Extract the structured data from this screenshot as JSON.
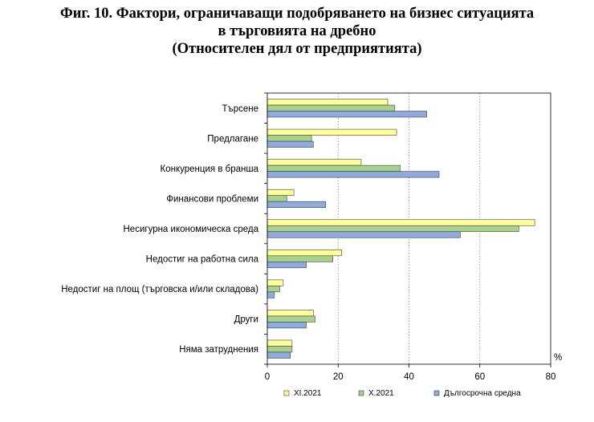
{
  "title": {
    "line1": "Фиг. 10. Фактори, ограничаващи подобряването на бизнес ситуацията",
    "line2": "в търговията на дребно",
    "line3": "(Относителен дял от предприятията)"
  },
  "chart_data": {
    "type": "bar",
    "orientation": "horizontal",
    "categories": [
      "Търсене",
      "Предлагане",
      "Конкуренция в бранша",
      "Финансови проблеми",
      "Несигурна икономическа среда",
      "Недостиг на работна сила",
      "Недостиг на площ (търговска и/или складова)",
      "Други",
      "Няма затруднения"
    ],
    "series": [
      {
        "name": "XI.2021",
        "color": "#ffff99",
        "values": [
          34,
          36.5,
          26.5,
          7.5,
          75.5,
          21,
          4.5,
          13,
          7
        ]
      },
      {
        "name": "X.2021",
        "color": "#a9d18e",
        "values": [
          36,
          12.5,
          37.5,
          5.5,
          71,
          18.5,
          3.5,
          13.5,
          7
        ]
      },
      {
        "name": "Дългосрочна средна",
        "color": "#8faadc",
        "values": [
          45,
          13,
          48.5,
          16.5,
          54.5,
          11,
          2,
          11,
          6.5
        ]
      }
    ],
    "xlim": [
      0,
      80
    ],
    "xticks": [
      "0",
      "20",
      "40",
      "60",
      "80"
    ],
    "unit": "%",
    "grid": "vertical dotted",
    "legend": "bottom"
  }
}
